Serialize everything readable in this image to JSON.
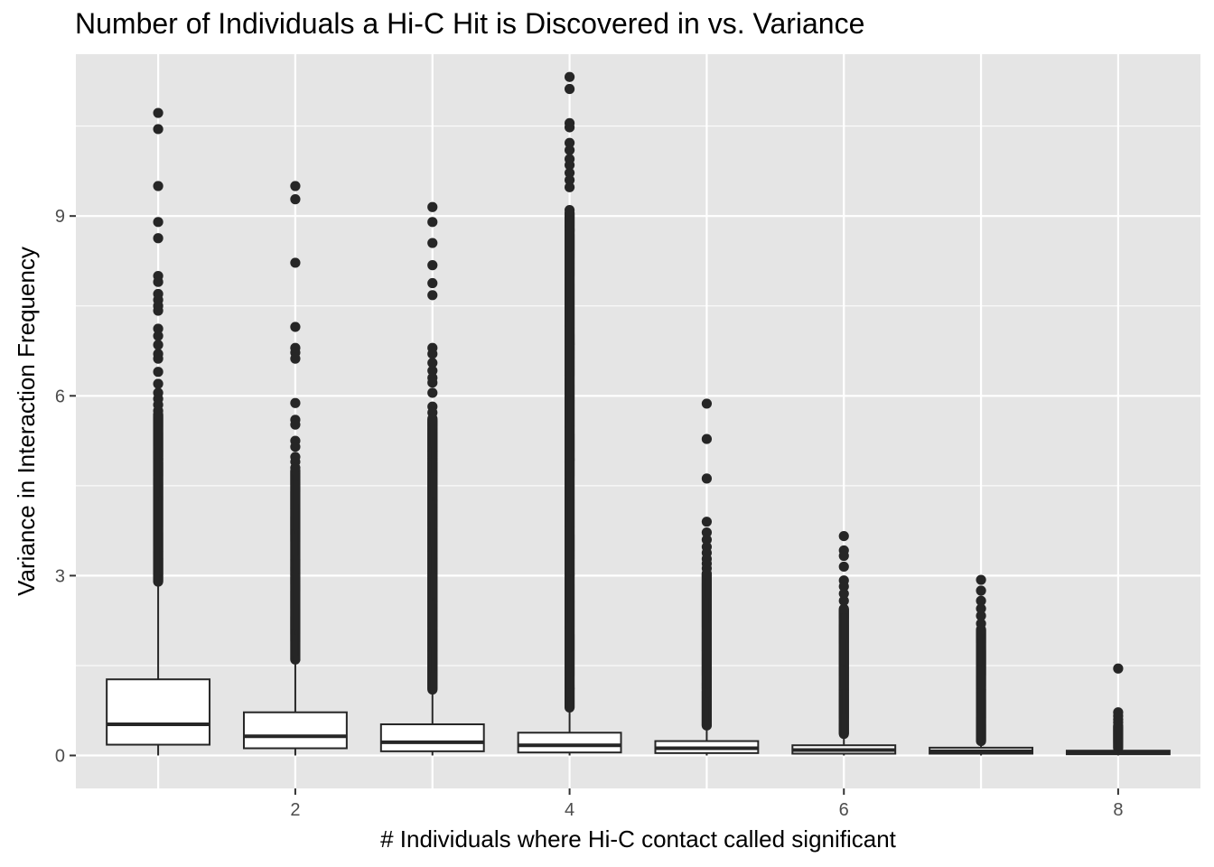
{
  "chart_data": {
    "type": "boxplot",
    "title": "Number of Individuals a Hi-C Hit is Discovered in vs. Variance",
    "xlabel": "# Individuals where Hi-C contact called significant",
    "ylabel": "Variance in Interaction Frequency",
    "xlim": [
      0.4,
      8.6
    ],
    "ylim": [
      -0.55,
      11.7
    ],
    "x_ticks": [
      2,
      4,
      6,
      8
    ],
    "y_ticks": [
      0,
      3,
      6,
      9
    ],
    "grid": true,
    "legend": "none",
    "colors": {
      "panel": "#e5e5e5",
      "grid": "#ffffff",
      "box_fill": "#ffffff",
      "box_line": "#262626",
      "point": "#262626"
    },
    "boxes": [
      {
        "x": 1,
        "q1": 0.18,
        "median": 0.52,
        "q3": 1.27,
        "whisker_low": 0.0,
        "whisker_high": 2.9,
        "outliers": [
          10.72,
          10.45,
          9.5,
          8.9,
          8.63,
          8.0,
          7.9,
          7.7,
          7.6,
          7.5,
          7.42,
          7.12,
          7.0,
          6.85,
          6.7,
          6.62,
          6.4,
          6.2,
          6.05,
          5.95,
          5.85,
          5.75
        ],
        "dense_ranges": [
          [
            2.9,
            5.7
          ]
        ]
      },
      {
        "x": 2,
        "q1": 0.12,
        "median": 0.32,
        "q3": 0.72,
        "whisker_low": 0.0,
        "whisker_high": 1.6,
        "outliers": [
          9.5,
          9.28,
          8.22,
          7.15,
          6.8,
          6.72,
          6.62,
          5.88,
          5.6,
          5.52,
          5.25,
          5.15,
          4.98,
          4.9,
          4.8
        ],
        "dense_ranges": [
          [
            1.6,
            4.75
          ]
        ]
      },
      {
        "x": 3,
        "q1": 0.07,
        "median": 0.22,
        "q3": 0.52,
        "whisker_low": 0.0,
        "whisker_high": 1.1,
        "outliers": [
          9.15,
          8.9,
          8.55,
          8.18,
          7.88,
          7.68,
          6.8,
          6.7,
          6.55,
          6.42,
          6.3,
          6.22,
          6.05,
          5.82,
          5.72,
          5.62
        ],
        "dense_ranges": [
          [
            1.1,
            5.6
          ]
        ]
      },
      {
        "x": 4,
        "q1": 0.05,
        "median": 0.17,
        "q3": 0.38,
        "whisker_low": 0.0,
        "whisker_high": 0.8,
        "outliers": [
          11.32,
          11.12,
          10.55,
          10.48,
          10.22,
          10.1,
          9.95,
          9.85,
          9.72,
          9.6,
          9.48,
          9.1
        ],
        "dense_ranges": [
          [
            0.8,
            9.05
          ]
        ]
      },
      {
        "x": 5,
        "q1": 0.04,
        "median": 0.12,
        "q3": 0.24,
        "whisker_low": 0.0,
        "whisker_high": 0.5,
        "outliers": [
          5.87,
          5.28,
          4.62,
          3.9,
          3.72,
          3.6,
          3.48,
          3.38,
          3.28,
          3.2,
          3.12
        ],
        "dense_ranges": [
          [
            0.5,
            3.05
          ]
        ]
      },
      {
        "x": 6,
        "q1": 0.03,
        "median": 0.09,
        "q3": 0.17,
        "whisker_low": 0.0,
        "whisker_high": 0.36,
        "outliers": [
          3.66,
          3.42,
          3.33,
          3.15,
          2.92,
          2.82,
          2.7,
          2.58
        ],
        "dense_ranges": [
          [
            0.36,
            2.45
          ]
        ]
      },
      {
        "x": 7,
        "q1": 0.03,
        "median": 0.07,
        "q3": 0.13,
        "whisker_low": 0.0,
        "whisker_high": 0.24,
        "outliers": [
          2.93,
          2.75,
          2.58,
          2.45,
          2.33,
          2.2
        ],
        "dense_ranges": [
          [
            0.24,
            2.1
          ]
        ]
      },
      {
        "x": 8,
        "q1": 0.02,
        "median": 0.05,
        "q3": 0.08,
        "whisker_low": 0.0,
        "whisker_high": 0.12,
        "outliers": [
          1.45,
          0.72,
          0.66,
          0.6,
          0.55
        ],
        "dense_ranges": [
          [
            0.12,
            0.5
          ]
        ]
      }
    ]
  }
}
